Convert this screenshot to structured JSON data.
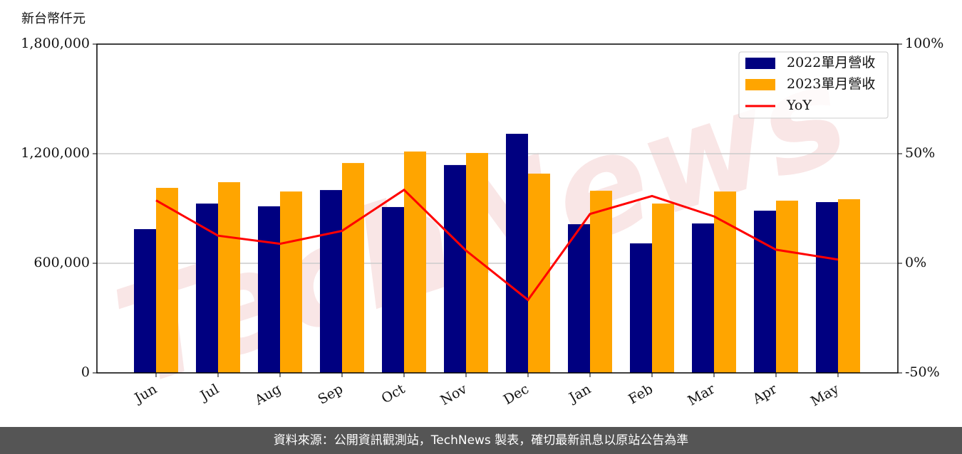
{
  "chart_data": {
    "type": "bar-line",
    "y_label": "新台幣仟元",
    "watermark": "TechNews",
    "categories": [
      "Jun",
      "Jul",
      "Aug",
      "Sep",
      "Oct",
      "Nov",
      "Dec",
      "Jan",
      "Feb",
      "Mar",
      "Apr",
      "May"
    ],
    "series": [
      {
        "name": "2022單月營收",
        "color": "#000080",
        "values": [
          787000,
          927000,
          912000,
          1001000,
          908000,
          1138000,
          1309000,
          814000,
          709000,
          818000,
          888000,
          935000
        ]
      },
      {
        "name": "2023單月營收",
        "color": "#ffa500",
        "values": [
          1013000,
          1044000,
          993000,
          1149000,
          1212000,
          1204000,
          1091000,
          997000,
          927000,
          993000,
          943000,
          951000
        ]
      },
      {
        "name": "YoY",
        "color": "#ff0000",
        "axis": "y2",
        "values": [
          28.7,
          12.6,
          8.9,
          14.8,
          33.5,
          5.8,
          -16.7,
          22.5,
          30.7,
          21.4,
          6.2,
          1.7
        ]
      }
    ],
    "ylim": [
      0,
      1800000
    ],
    "yticks": [
      {
        "value": 0,
        "label": "0"
      },
      {
        "value": 600000,
        "label": "600,000"
      },
      {
        "value": 1200000,
        "label": "1,200,000"
      },
      {
        "value": 1800000,
        "label": "1,800,000"
      }
    ],
    "y2lim": [
      -50,
      100
    ],
    "y2ticks": [
      {
        "value": -50,
        "label": "-50%"
      },
      {
        "value": 0,
        "label": "0%"
      },
      {
        "value": 50,
        "label": "50%"
      },
      {
        "value": 100,
        "label": "100%"
      }
    ],
    "grid": true,
    "legend": "upper right",
    "footer": "資料來源：公開資訊觀測站，TechNews 製表，確切最新訊息以原站公告為準"
  }
}
